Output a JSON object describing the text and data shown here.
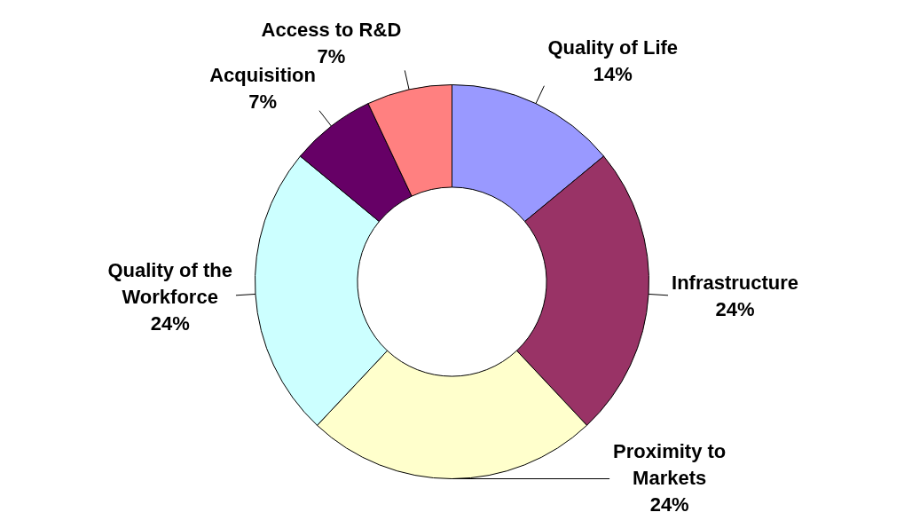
{
  "chart_data": {
    "type": "donut",
    "categories": [
      "Quality of Life",
      "Infrastructure",
      "Proximity to Markets",
      "Quality of the Workforce",
      "Acquisition",
      "Access to R&D"
    ],
    "values": [
      14,
      24,
      24,
      24,
      7,
      7
    ],
    "value_labels": [
      "14%",
      "24%",
      "24%",
      "24%",
      "7%",
      "7%"
    ],
    "colors": [
      "#9999ff",
      "#993366",
      "#ffffcc",
      "#ccffff",
      "#660066",
      "#ff8080"
    ],
    "legend": false
  }
}
